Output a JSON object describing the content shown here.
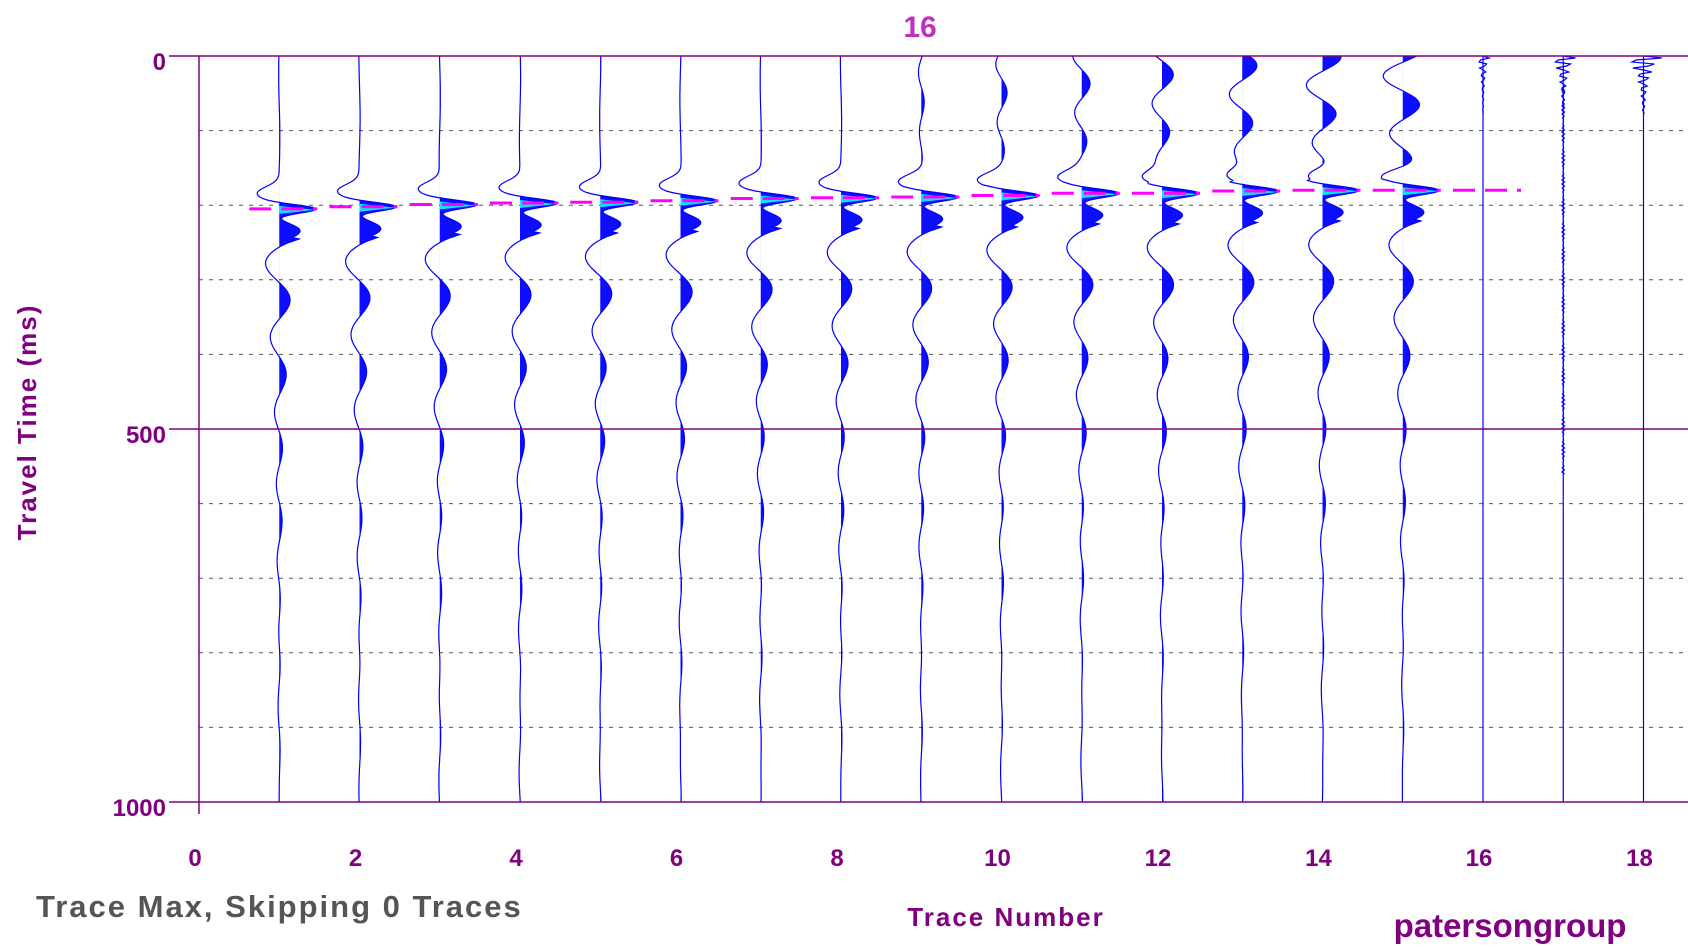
{
  "chart_data": {
    "type": "line",
    "title": "16",
    "xlabel": "Trace Number",
    "ylabel": "Travel Time (ms)",
    "xlim": [
      0,
      18.5
    ],
    "ylim": [
      0,
      1000
    ],
    "x_ticks": [
      0,
      2,
      4,
      6,
      8,
      10,
      12,
      14,
      16,
      18
    ],
    "y_ticks": [
      0,
      500,
      1000
    ],
    "y_minor_gridlines": [
      100,
      200,
      300,
      400,
      600,
      700,
      800,
      900
    ],
    "grid": true,
    "traces": [
      1,
      2,
      3,
      4,
      5,
      6,
      7,
      8,
      9,
      10,
      11,
      12,
      13,
      14,
      15,
      16,
      17,
      18
    ],
    "first_break_picks": {
      "name": "",
      "x": [
        1,
        2,
        3,
        4,
        5,
        6,
        7,
        8,
        9,
        10,
        11,
        12,
        13,
        14,
        15,
        16
      ],
      "y": [
        205,
        202,
        199,
        197,
        196,
        194,
        191,
        190,
        189,
        187,
        184,
        184,
        181,
        180,
        180,
        180
      ]
    },
    "colors": {
      "trace": "#0000ff",
      "fill": "#0000ff",
      "pick": "#ff00ff",
      "pick_highlight": "#00ffff",
      "axis": "#800080",
      "title": "#c030c0",
      "grid": "#555555"
    }
  },
  "footer": {
    "left_note": "Trace Max, Skipping 0 Traces",
    "brand": "patersongroup"
  }
}
